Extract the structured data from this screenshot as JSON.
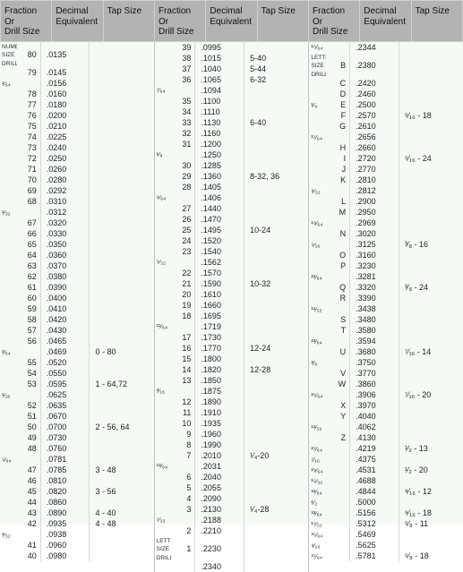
{
  "headers": [
    "Fraction Or\nDrill Size",
    "Decimal\nEquivalent",
    "Tap Size",
    "Fraction Or\nDrill Size",
    "Decimal\nEquivalent",
    "Tap Size",
    "Fraction Or\nDrill Size",
    "Decimal\nEquivalent",
    "Tap Size"
  ],
  "columns": [
    {
      "rows": [
        {
          "f": "NUMBER SIZE DRILLS",
          "s": "80",
          "d": ".0135",
          "t": "",
          "note": true
        },
        {
          "f": "",
          "s": "79",
          "d": ".0145",
          "t": ""
        },
        {
          "f": "¹⁄₆₄",
          "s": "",
          "d": ".0156",
          "t": ""
        },
        {
          "f": "",
          "s": "78",
          "d": ".0160",
          "t": ""
        },
        {
          "f": "",
          "s": "77",
          "d": ".0180",
          "t": ""
        },
        {
          "f": "",
          "s": "76",
          "d": ".0200",
          "t": ""
        },
        {
          "f": "",
          "s": "75",
          "d": ".0210",
          "t": ""
        },
        {
          "f": "",
          "s": "74",
          "d": ".0225",
          "t": ""
        },
        {
          "f": "",
          "s": "73",
          "d": ".0240",
          "t": ""
        },
        {
          "f": "",
          "s": "72",
          "d": ".0250",
          "t": ""
        },
        {
          "f": "",
          "s": "71",
          "d": ".0260",
          "t": ""
        },
        {
          "f": "",
          "s": "70",
          "d": ".0280",
          "t": ""
        },
        {
          "f": "",
          "s": "69",
          "d": ".0292",
          "t": ""
        },
        {
          "f": "",
          "s": "68",
          "d": ".0310",
          "t": ""
        },
        {
          "f": "¹⁄₃₂",
          "s": "",
          "d": ".0312",
          "t": ""
        },
        {
          "f": "",
          "s": "67",
          "d": ".0320",
          "t": ""
        },
        {
          "f": "",
          "s": "66",
          "d": ".0330",
          "t": ""
        },
        {
          "f": "",
          "s": "65",
          "d": ".0350",
          "t": ""
        },
        {
          "f": "",
          "s": "64",
          "d": ".0360",
          "t": ""
        },
        {
          "f": "",
          "s": "63",
          "d": ".0370",
          "t": ""
        },
        {
          "f": "",
          "s": "62",
          "d": ".0380",
          "t": ""
        },
        {
          "f": "",
          "s": "61",
          "d": ".0390",
          "t": ""
        },
        {
          "f": "",
          "s": "60",
          "d": ".0400",
          "t": ""
        },
        {
          "f": "",
          "s": "59",
          "d": ".0410",
          "t": ""
        },
        {
          "f": "",
          "s": "58",
          "d": ".0420",
          "t": ""
        },
        {
          "f": "",
          "s": "57",
          "d": ".0430",
          "t": ""
        },
        {
          "f": "",
          "s": "56",
          "d": ".0465",
          "t": ""
        },
        {
          "f": "³⁄₆₄",
          "s": "",
          "d": ".0469",
          "t": "0 - 80"
        },
        {
          "f": "",
          "s": "55",
          "d": ".0520",
          "t": ""
        },
        {
          "f": "",
          "s": "54",
          "d": ".0550",
          "t": ""
        },
        {
          "f": "",
          "s": "53",
          "d": ".0595",
          "t": "1 - 64,72"
        },
        {
          "f": "¹⁄₁₆",
          "s": "",
          "d": ".0625",
          "t": ""
        },
        {
          "f": "",
          "s": "52",
          "d": ".0635",
          "t": ""
        },
        {
          "f": "",
          "s": "51",
          "d": ".0670",
          "t": ""
        },
        {
          "f": "",
          "s": "50",
          "d": ".0700",
          "t": "2 - 56, 64"
        },
        {
          "f": "",
          "s": "49",
          "d": ".0730",
          "t": ""
        },
        {
          "f": "",
          "s": "48",
          "d": ".0760",
          "t": ""
        },
        {
          "f": "⁵⁄₆₄",
          "s": "",
          "d": ".0781",
          "t": ""
        },
        {
          "f": "",
          "s": "47",
          "d": ".0785",
          "t": "3 - 48"
        },
        {
          "f": "",
          "s": "46",
          "d": ".0810",
          "t": ""
        },
        {
          "f": "",
          "s": "45",
          "d": ".0820",
          "t": "3 - 56"
        },
        {
          "f": "",
          "s": "44",
          "d": ".0860",
          "t": ""
        },
        {
          "f": "",
          "s": "43",
          "d": ".0890",
          "t": "4 - 40"
        },
        {
          "f": "",
          "s": "42",
          "d": ".0935",
          "t": "4 - 48"
        },
        {
          "f": "³⁄₃₂",
          "s": "",
          "d": ".0938",
          "t": ""
        },
        {
          "f": "",
          "s": "41",
          "d": ".0960",
          "t": ""
        },
        {
          "f": "",
          "s": "40",
          "d": ".0980",
          "t": ""
        }
      ]
    },
    {
      "rows": [
        {
          "f": "",
          "s": "39",
          "d": ".0995",
          "t": ""
        },
        {
          "f": "",
          "s": "38",
          "d": ".1015",
          "t": "5-40"
        },
        {
          "f": "",
          "s": "37",
          "d": ".1040",
          "t": "5-44"
        },
        {
          "f": "",
          "s": "36",
          "d": ".1065",
          "t": "6-32"
        },
        {
          "f": "⁷⁄₆₄",
          "s": "",
          "d": ".1094",
          "t": ""
        },
        {
          "f": "",
          "s": "35",
          "d": ".1100",
          "t": ""
        },
        {
          "f": "",
          "s": "34",
          "d": ".1110",
          "t": ""
        },
        {
          "f": "",
          "s": "33",
          "d": ".1130",
          "t": "6-40"
        },
        {
          "f": "",
          "s": "32",
          "d": ".1160",
          "t": ""
        },
        {
          "f": "",
          "s": "31",
          "d": ".1200",
          "t": ""
        },
        {
          "f": "¹⁄₈",
          "s": "",
          "d": ".1250",
          "t": ""
        },
        {
          "f": "",
          "s": "30",
          "d": ".1285",
          "t": ""
        },
        {
          "f": "",
          "s": "29",
          "d": ".1360",
          "t": "8-32, 36"
        },
        {
          "f": "",
          "s": "28",
          "d": ".1405",
          "t": ""
        },
        {
          "f": "⁹⁄₆₄",
          "s": "",
          "d": ".1406",
          "t": ""
        },
        {
          "f": "",
          "s": "27",
          "d": ".1440",
          "t": ""
        },
        {
          "f": "",
          "s": "26",
          "d": ".1470",
          "t": ""
        },
        {
          "f": "",
          "s": "25",
          "d": ".1495",
          "t": "10-24"
        },
        {
          "f": "",
          "s": "24",
          "d": ".1520",
          "t": ""
        },
        {
          "f": "",
          "s": "23",
          "d": ".1540",
          "t": ""
        },
        {
          "f": "⁵⁄₃₂",
          "s": "",
          "d": ".1562",
          "t": ""
        },
        {
          "f": "",
          "s": "22",
          "d": ".1570",
          "t": ""
        },
        {
          "f": "",
          "s": "21",
          "d": ".1590",
          "t": "10-32"
        },
        {
          "f": "",
          "s": "20",
          "d": ".1610",
          "t": ""
        },
        {
          "f": "",
          "s": "19",
          "d": ".1660",
          "t": ""
        },
        {
          "f": "",
          "s": "18",
          "d": ".1695",
          "t": ""
        },
        {
          "f": "¹¹⁄₆₄",
          "s": "",
          "d": ".1719",
          "t": ""
        },
        {
          "f": "",
          "s": "17",
          "d": ".1730",
          "t": ""
        },
        {
          "f": "",
          "s": "16",
          "d": ".1770",
          "t": "12-24"
        },
        {
          "f": "",
          "s": "15",
          "d": ".1800",
          "t": ""
        },
        {
          "f": "",
          "s": "14",
          "d": ".1820",
          "t": "12-28"
        },
        {
          "f": "",
          "s": "13",
          "d": ".1850",
          "t": ""
        },
        {
          "f": "³⁄₁₆",
          "s": "",
          "d": ".1875",
          "t": ""
        },
        {
          "f": "",
          "s": "12",
          "d": ".1890",
          "t": ""
        },
        {
          "f": "",
          "s": "11",
          "d": ".1910",
          "t": ""
        },
        {
          "f": "",
          "s": "10",
          "d": ".1935",
          "t": ""
        },
        {
          "f": "",
          "s": "9",
          "d": ".1960",
          "t": ""
        },
        {
          "f": "",
          "s": "8",
          "d": ".1990",
          "t": ""
        },
        {
          "f": "",
          "s": "7",
          "d": ".2010",
          "t": "¹⁄₄-20"
        },
        {
          "f": "¹³⁄₆₄",
          "s": "",
          "d": ".2031",
          "t": ""
        },
        {
          "f": "",
          "s": "6",
          "d": ".2040",
          "t": ""
        },
        {
          "f": "",
          "s": "5",
          "d": ".2055",
          "t": ""
        },
        {
          "f": "",
          "s": "4",
          "d": ".2090",
          "t": ""
        },
        {
          "f": "",
          "s": "3",
          "d": ".2130",
          "t": "¹⁄₄-28"
        },
        {
          "f": "⁷⁄₃₂",
          "s": "",
          "d": ".2188",
          "t": ""
        },
        {
          "f": "",
          "s": "2",
          "d": ".2210",
          "t": ""
        },
        {
          "f": "LETTER SIZE DRILLS",
          "s": "1",
          "d": ".2230",
          "t": "",
          "note": true
        },
        {
          "f": "",
          "s": "",
          "d": ".2340",
          "t": ""
        }
      ]
    },
    {
      "rows": [
        {
          "f": "¹⁵⁄₆₄",
          "s": "",
          "d": ".2344",
          "t": ""
        },
        {
          "f": "LETTER SIZE DRILLS",
          "s": "B",
          "d": ".2380",
          "t": "",
          "note": true
        },
        {
          "f": "",
          "s": "C",
          "d": ".2420",
          "t": ""
        },
        {
          "f": "",
          "s": "D",
          "d": ".2460",
          "t": ""
        },
        {
          "f": "¹⁄₄",
          "s": "E",
          "d": ".2500",
          "t": ""
        },
        {
          "f": "",
          "s": "F",
          "d": ".2570",
          "t": "⁵⁄₁₆ - 18"
        },
        {
          "f": "",
          "s": "G",
          "d": ".2610",
          "t": ""
        },
        {
          "f": "¹⁷⁄₆₄",
          "s": "",
          "d": ".2656",
          "t": ""
        },
        {
          "f": "",
          "s": "H",
          "d": ".2660",
          "t": ""
        },
        {
          "f": "",
          "s": "I",
          "d": ".2720",
          "t": "⁵⁄₁₆ - 24"
        },
        {
          "f": "",
          "s": "J",
          "d": ".2770",
          "t": ""
        },
        {
          "f": "",
          "s": "K",
          "d": ".2810",
          "t": ""
        },
        {
          "f": "⁹⁄₃₂",
          "s": "",
          "d": ".2812",
          "t": ""
        },
        {
          "f": "",
          "s": "L",
          "d": ".2900",
          "t": ""
        },
        {
          "f": "",
          "s": "M",
          "d": ".2950",
          "t": ""
        },
        {
          "f": "¹⁹⁄₆₄",
          "s": "",
          "d": ".2969",
          "t": ""
        },
        {
          "f": "",
          "s": "N",
          "d": ".3020",
          "t": ""
        },
        {
          "f": "⁵⁄₁₆",
          "s": "",
          "d": ".3125",
          "t": "³⁄₈ - 16"
        },
        {
          "f": "",
          "s": "O",
          "d": ".3160",
          "t": ""
        },
        {
          "f": "",
          "s": "P",
          "d": ".3230",
          "t": ""
        },
        {
          "f": "²¹⁄₆₄",
          "s": "",
          "d": ".3281",
          "t": ""
        },
        {
          "f": "",
          "s": "Q",
          "d": ".3320",
          "t": "³⁄₈ - 24"
        },
        {
          "f": "",
          "s": "R",
          "d": ".3390",
          "t": ""
        },
        {
          "f": "¹¹⁄₃₂",
          "s": "",
          "d": ".3438",
          "t": ""
        },
        {
          "f": "",
          "s": "S",
          "d": ".3480",
          "t": ""
        },
        {
          "f": "",
          "s": "T",
          "d": ".3580",
          "t": ""
        },
        {
          "f": "²³⁄₆₄",
          "s": "",
          "d": ".3594",
          "t": ""
        },
        {
          "f": "",
          "s": "U",
          "d": ".3680",
          "t": "⁷⁄₁₆ - 14"
        },
        {
          "f": "³⁄₈",
          "s": "",
          "d": ".3750",
          "t": ""
        },
        {
          "f": "",
          "s": "V",
          "d": ".3770",
          "t": ""
        },
        {
          "f": "",
          "s": "W",
          "d": ".3860",
          "t": ""
        },
        {
          "f": "²⁵⁄₆₄",
          "s": "",
          "d": ".3906",
          "t": "⁷⁄₁₆ - 20"
        },
        {
          "f": "",
          "s": "X",
          "d": ".3970",
          "t": ""
        },
        {
          "f": "",
          "s": "Y",
          "d": ".4040",
          "t": ""
        },
        {
          "f": "¹³⁄₃₂",
          "s": "",
          "d": ".4062",
          "t": ""
        },
        {
          "f": "",
          "s": "Z",
          "d": ".4130",
          "t": ""
        },
        {
          "f": "²⁷⁄₆₄",
          "s": "",
          "d": ".4219",
          "t": "¹⁄₂ - 13"
        },
        {
          "f": "⁷⁄₁₆",
          "s": "",
          "d": ".4375",
          "t": ""
        },
        {
          "f": "²⁹⁄₆₄",
          "s": "",
          "d": ".4531",
          "t": "¹⁄₂ - 20"
        },
        {
          "f": "¹⁵⁄₃₂",
          "s": "",
          "d": ".4688",
          "t": ""
        },
        {
          "f": "³¹⁄₆₄",
          "s": "",
          "d": ".4844",
          "t": "⁹⁄₁₆ - 12"
        },
        {
          "f": "¹⁄₂",
          "s": "",
          "d": ".5000",
          "t": ""
        },
        {
          "f": "³³⁄₆₄",
          "s": "",
          "d": ".5156",
          "t": "⁹⁄₁₆ - 18"
        },
        {
          "f": "¹⁷⁄₃₂",
          "s": "",
          "d": ".5312",
          "t": "⁵⁄₈ - 11"
        },
        {
          "f": "³⁵⁄₆₄",
          "s": "",
          "d": ".5469",
          "t": ""
        },
        {
          "f": "⁹⁄₁₆",
          "s": "",
          "d": ".5625",
          "t": ""
        },
        {
          "f": "³⁷⁄₆₄",
          "s": "",
          "d": ".5781",
          "t": "⁵⁄₈ - 18"
        }
      ]
    }
  ]
}
